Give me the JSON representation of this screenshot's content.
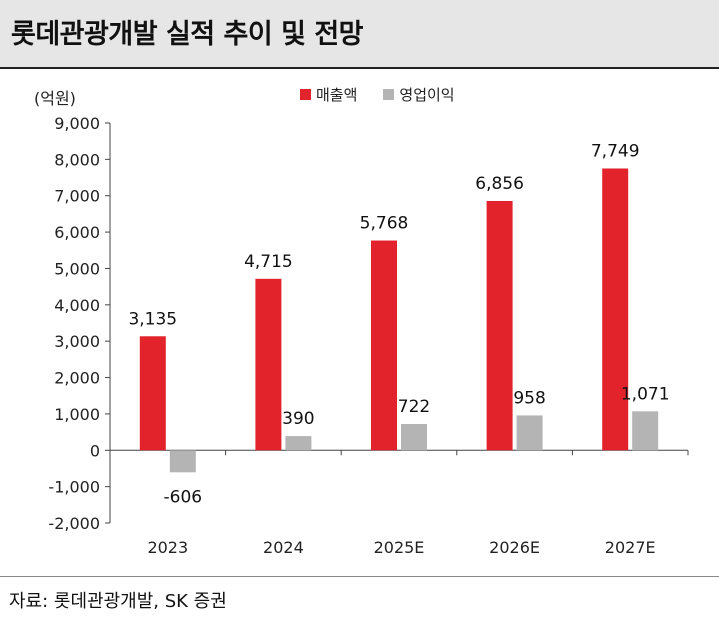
{
  "title": "롯데관광개발 실적 추이 및 전망",
  "unit_label": "(억원)",
  "source": "자료: 롯데관광개발, SK 증권",
  "chart_data": {
    "type": "bar",
    "categories": [
      "2023",
      "2024",
      "2025E",
      "2026E",
      "2027E"
    ],
    "series": [
      {
        "name": "매출액",
        "color": "#e3232c",
        "values": [
          3135,
          4715,
          5768,
          6856,
          7749
        ],
        "labels": [
          "3,135",
          "4,715",
          "5,768",
          "6,856",
          "7,749"
        ]
      },
      {
        "name": "영업이익",
        "color": "#b4b4b4",
        "values": [
          -606,
          390,
          722,
          958,
          1071
        ],
        "labels": [
          "-606",
          "390",
          "722",
          "958",
          "1,071"
        ]
      }
    ],
    "ylim": [
      -2000,
      9000
    ],
    "yticks": [
      9000,
      8000,
      7000,
      6000,
      5000,
      4000,
      3000,
      2000,
      1000,
      0,
      -1000,
      -2000
    ],
    "ytick_labels": [
      "9,000",
      "8,000",
      "7,000",
      "6,000",
      "5,000",
      "4,000",
      "3,000",
      "2,000",
      "1,000",
      "0",
      "-1,000",
      "-2,000"
    ],
    "legend_position": "top-center",
    "grid": false
  }
}
